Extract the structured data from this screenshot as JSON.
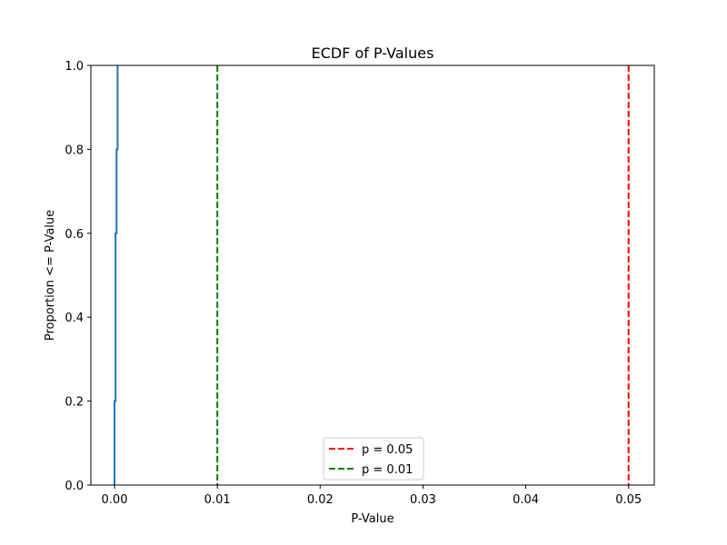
{
  "chart_data": {
    "type": "line",
    "title": "ECDF of P-Values",
    "xlabel": "P-Value",
    "ylabel": "Proportion <= P-Value",
    "xlim": [
      -0.0023,
      0.0525
    ],
    "ylim": [
      0.0,
      1.0
    ],
    "xticks": [
      0.0,
      0.01,
      0.02,
      0.03,
      0.04,
      0.05
    ],
    "xtick_labels": [
      "0.00",
      "0.01",
      "0.02",
      "0.03",
      "0.04",
      "0.05"
    ],
    "yticks": [
      0.0,
      0.2,
      0.4,
      0.6,
      0.8,
      1.0
    ],
    "ytick_labels": [
      "0.0",
      "0.2",
      "0.4",
      "0.6",
      "0.8",
      "1.0"
    ],
    "grid": false,
    "legend_position": "lower-center",
    "series": [
      {
        "type": "step",
        "color": "#1f77b4",
        "x": [
          0.0,
          0.0001,
          0.0001,
          0.0002,
          0.0003
        ],
        "y": [
          0.2,
          0.4,
          0.6,
          0.8,
          1.0
        ]
      }
    ],
    "reference_lines": [
      {
        "name": "p = 0.05",
        "x": 0.05,
        "color": "#ff0000",
        "style": "dashed"
      },
      {
        "name": "p = 0.01",
        "x": 0.01,
        "color": "#008000",
        "style": "dashed"
      }
    ]
  }
}
